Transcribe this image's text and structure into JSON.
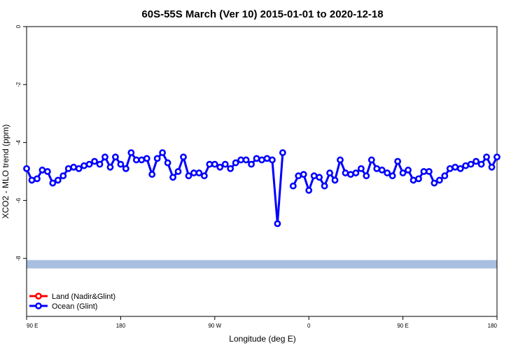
{
  "chart_data": {
    "type": "line",
    "title": "60S-55S March (Ver 10)   2015-01-01 to 2020-12-18",
    "xlabel": "Longitude (deg E)",
    "ylabel": "XCO2 - MLO trend (ppm)",
    "xlim": [
      90,
      450
    ],
    "ylim": [
      -10,
      0
    ],
    "x_ticks": [
      {
        "value": 90,
        "label": "90 E"
      },
      {
        "value": 180,
        "label": "180"
      },
      {
        "value": 270,
        "label": "90 W"
      },
      {
        "value": 360,
        "label": "0"
      },
      {
        "value": 450,
        "label": "90 E"
      },
      {
        "value": 540,
        "label": "180"
      }
    ],
    "y_ticks": [
      {
        "value": 0,
        "label": "0"
      },
      {
        "value": -2,
        "label": "-2"
      },
      {
        "value": -4,
        "label": "-4"
      },
      {
        "value": -6,
        "label": "-6"
      },
      {
        "value": -8,
        "label": "-8"
      }
    ],
    "band": {
      "y": -8.2,
      "color": "#a8bfe0"
    },
    "legend": {
      "position": "bottom-left",
      "entries": [
        {
          "label": "Land (Nadir&Glint)",
          "color": "#ff0000"
        },
        {
          "label": "Ocean (Glint)",
          "color": "#0000ff"
        }
      ]
    },
    "series": [
      {
        "name": "Land (Nadir&Glint)",
        "color": "#ff0000",
        "x": [],
        "y": []
      },
      {
        "name": "Ocean (Glint)",
        "color": "#0000ff",
        "segments": [
          {
            "x": [
              90,
              95,
              100,
              105,
              110,
              115,
              120,
              125,
              130,
              135,
              140,
              145,
              150,
              155,
              160,
              165,
              170,
              175,
              180,
              185,
              190,
              195,
              200,
              205,
              210,
              215,
              220,
              225,
              230,
              235,
              240,
              245,
              250,
              255,
              260,
              265,
              270,
              275,
              280,
              285,
              290,
              295,
              300,
              305,
              310,
              315,
              320,
              325,
              330,
              335,
              340
            ],
            "y": [
              -4.9,
              -5.3,
              -5.25,
              -4.95,
              -5.0,
              -5.4,
              -5.3,
              -5.15,
              -4.9,
              -4.85,
              -4.9,
              -4.8,
              -4.75,
              -4.65,
              -4.75,
              -4.5,
              -4.85,
              -4.5,
              -4.75,
              -4.9,
              -4.35,
              -4.6,
              -4.6,
              -4.55,
              -5.1,
              -4.55,
              -4.35,
              -4.7,
              -5.2,
              -5.0,
              -4.5,
              -5.15,
              -5.05,
              -5.05,
              -5.15,
              -4.75,
              -4.75,
              -4.85,
              -4.75,
              -4.9,
              -4.7,
              -4.6,
              -4.6,
              -4.75,
              -4.55,
              -4.6,
              -4.55,
              -4.6,
              -6.8,
              -4.35,
              null
            ]
          },
          {
            "x": [
              345,
              350,
              355,
              360,
              365,
              370,
              375,
              380,
              385,
              390,
              395,
              400,
              405,
              410,
              415,
              420,
              425,
              430,
              435,
              440,
              445,
              450,
              455,
              460,
              465,
              470,
              475,
              480,
              485,
              490,
              495,
              500,
              505,
              510,
              515,
              520,
              525,
              530,
              535,
              540
            ],
            "y": [
              -5.5,
              -5.15,
              -5.1,
              -5.65,
              -5.15,
              -5.2,
              -5.5,
              -5.05,
              -5.3,
              -4.6,
              -5.05,
              -5.1,
              -5.05,
              -4.9,
              -5.15,
              -4.6,
              -4.9,
              -4.95,
              -5.05,
              -5.15,
              -4.65,
              -5.05,
              -4.95,
              -5.3,
              -5.25,
              -5.0,
              -5.0,
              -5.4,
              -5.3,
              -5.15,
              -4.9,
              -4.85,
              -4.9,
              -4.8,
              -4.75,
              -4.65,
              -4.75,
              -4.5,
              -4.85,
              -4.5
            ]
          }
        ]
      }
    ]
  }
}
